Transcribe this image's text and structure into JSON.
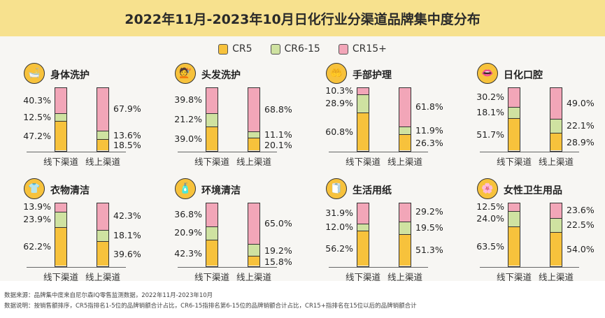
{
  "title": "2022年11月-2023年10月日化行业分渠道品牌集中度分布",
  "colors": {
    "CR5": "#f7c23c",
    "CR6-15": "#cfe2a1",
    "CR15+": "#f2a6b8"
  },
  "chart_data": {
    "type": "bar",
    "stacked": true,
    "title": "2022年11月-2023年10月日化行业分渠道品牌集中度分布",
    "legend": [
      "CR5",
      "CR6-15",
      "CR15+"
    ],
    "legend_position": "top-center",
    "categories": [
      "线下渠道",
      "线上渠道"
    ],
    "ylim": [
      0,
      100
    ],
    "panels": [
      {
        "name": "身体洗护",
        "icon": "body-wash-icon",
        "glyph": "🛁",
        "offline": [
          47.2,
          12.5,
          40.3
        ],
        "online": [
          18.5,
          13.6,
          67.9
        ]
      },
      {
        "name": "头发洗护",
        "icon": "hair-care-icon",
        "glyph": "💇",
        "offline": [
          39.0,
          21.2,
          39.8
        ],
        "online": [
          20.1,
          11.1,
          68.8
        ]
      },
      {
        "name": "手部护理",
        "icon": "hand-care-icon",
        "glyph": "🤲",
        "offline": [
          60.8,
          28.9,
          10.3
        ],
        "online": [
          26.3,
          11.9,
          61.8
        ]
      },
      {
        "name": "日化口腔",
        "icon": "oral-care-icon",
        "glyph": "👄",
        "offline": [
          51.7,
          18.1,
          30.2
        ],
        "online": [
          28.9,
          22.1,
          49.0
        ]
      },
      {
        "name": "衣物清洁",
        "icon": "laundry-icon",
        "glyph": "👕",
        "offline": [
          62.2,
          23.9,
          13.9
        ],
        "online": [
          39.6,
          18.1,
          42.3
        ]
      },
      {
        "name": "环境清洁",
        "icon": "home-cleaning-icon",
        "glyph": "🧴",
        "offline": [
          42.3,
          20.9,
          36.8
        ],
        "online": [
          15.8,
          19.2,
          65.0
        ]
      },
      {
        "name": "生活用纸",
        "icon": "tissue-icon",
        "glyph": "🧻",
        "offline": [
          56.2,
          12.0,
          31.9
        ],
        "online": [
          51.3,
          19.5,
          29.2
        ]
      },
      {
        "name": "女性卫生用品",
        "icon": "feminine-care-icon",
        "glyph": "🌸",
        "offline": [
          63.5,
          24.0,
          12.5
        ],
        "online": [
          54.0,
          22.5,
          23.6
        ]
      }
    ]
  },
  "footer": {
    "source": "数据来源：品牌集中度来自尼尔森IQ零售监测数据，2022年11月-2023年10月",
    "note": "数据说明：按销售额排序，CR5指排名1-5位的品牌销额合计占比，CR6-15指排名第6-15位的品牌销额合计占比，CR15+指排名在15位以后的品牌销额合计"
  }
}
